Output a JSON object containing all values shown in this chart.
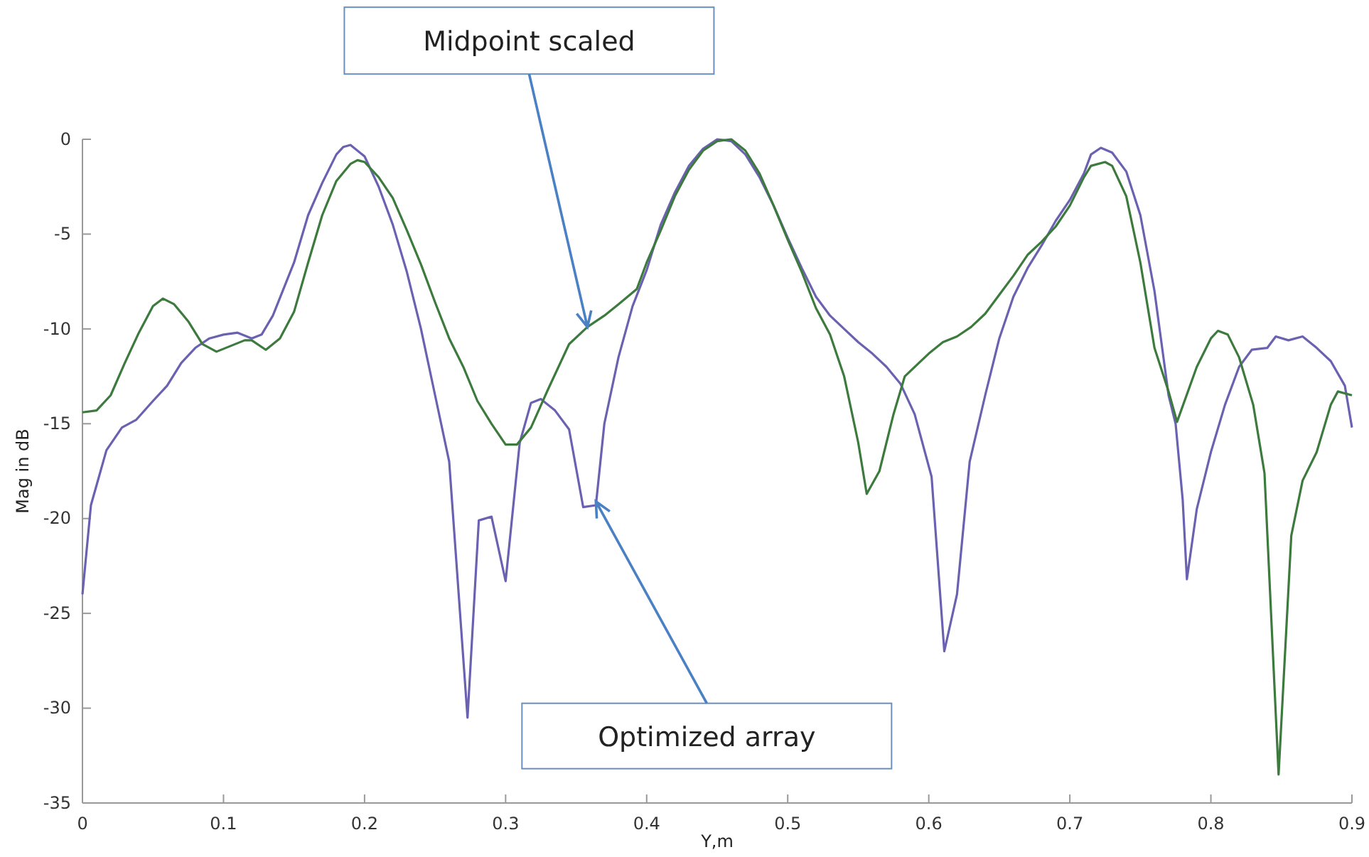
{
  "chart_data": {
    "type": "line",
    "xlabel": "Y,m",
    "ylabel": "Mag in dB",
    "xlim": [
      0,
      0.9
    ],
    "ylim": [
      -35,
      0
    ],
    "xticks": [
      0,
      0.1,
      0.2,
      0.3,
      0.4,
      0.5,
      0.6,
      0.7,
      0.8,
      0.9
    ],
    "yticks": [
      -35,
      -30,
      -25,
      -20,
      -15,
      -10,
      -5,
      0
    ],
    "grid": false,
    "line_style": "solid",
    "marker": "none",
    "series": [
      {
        "color": "#6a62b0",
        "x": [
          0,
          0.006,
          0.017,
          0.028,
          0.038,
          0.05,
          0.06,
          0.07,
          0.08,
          0.09,
          0.1,
          0.11,
          0.12,
          0.127,
          0.135,
          0.15,
          0.16,
          0.17,
          0.18,
          0.185,
          0.19,
          0.2,
          0.21,
          0.22,
          0.23,
          0.24,
          0.25,
          0.26,
          0.273,
          0.281,
          0.29,
          0.3,
          0.31,
          0.318,
          0.325,
          0.335,
          0.345,
          0.355,
          0.364,
          0.37,
          0.38,
          0.39,
          0.4,
          0.41,
          0.42,
          0.43,
          0.44,
          0.45,
          0.46,
          0.47,
          0.48,
          0.49,
          0.5,
          0.51,
          0.52,
          0.53,
          0.54,
          0.55,
          0.56,
          0.57,
          0.58,
          0.59,
          0.602,
          0.611,
          0.62,
          0.629,
          0.64,
          0.65,
          0.66,
          0.67,
          0.68,
          0.69,
          0.7,
          0.71,
          0.715,
          0.722,
          0.73,
          0.74,
          0.75,
          0.76,
          0.77,
          0.775,
          0.78,
          0.783,
          0.79,
          0.8,
          0.81,
          0.82,
          0.829,
          0.84,
          0.846,
          0.855,
          0.865,
          0.875,
          0.885,
          0.895,
          0.9
        ],
        "values": [
          -24,
          -19.3,
          -16.4,
          -15.2,
          -14.8,
          -13.8,
          -13,
          -11.8,
          -11,
          -10.5,
          -10.3,
          -10.2,
          -10.5,
          -10.3,
          -9.3,
          -6.5,
          -4,
          -2.3,
          -0.8,
          -0.4,
          -0.3,
          -0.9,
          -2.5,
          -4.5,
          -7,
          -10,
          -13.5,
          -17,
          -30.5,
          -20.1,
          -19.9,
          -23.3,
          -16,
          -13.9,
          -13.7,
          -14.3,
          -15.3,
          -19.4,
          -19.3,
          -15,
          -11.5,
          -8.8,
          -6.9,
          -4.5,
          -2.8,
          -1.4,
          -0.5,
          0,
          -0.1,
          -0.8,
          -2,
          -3.5,
          -5.2,
          -6.8,
          -8.3,
          -9.3,
          -10,
          -10.7,
          -11.3,
          -12,
          -12.9,
          -14.5,
          -17.8,
          -27,
          -24,
          -17,
          -13.5,
          -10.5,
          -8.3,
          -6.8,
          -5.6,
          -4.3,
          -3.2,
          -1.8,
          -0.8,
          -0.45,
          -0.7,
          -1.7,
          -4,
          -8,
          -13.5,
          -15,
          -19,
          -23.2,
          -19.5,
          -16.5,
          -14,
          -12,
          -11.1,
          -11,
          -10.4,
          -10.6,
          -10.4,
          -11,
          -11.7,
          -13,
          -15.2
        ]
      },
      {
        "color": "#3d7a3d",
        "x": [
          0,
          0.01,
          0.02,
          0.03,
          0.04,
          0.05,
          0.057,
          0.065,
          0.075,
          0.085,
          0.095,
          0.105,
          0.115,
          0.12,
          0.13,
          0.14,
          0.15,
          0.16,
          0.17,
          0.18,
          0.19,
          0.195,
          0.2,
          0.21,
          0.22,
          0.23,
          0.24,
          0.25,
          0.26,
          0.27,
          0.28,
          0.29,
          0.3,
          0.308,
          0.318,
          0.33,
          0.345,
          0.358,
          0.37,
          0.38,
          0.393,
          0.4,
          0.41,
          0.42,
          0.43,
          0.44,
          0.45,
          0.46,
          0.47,
          0.48,
          0.49,
          0.5,
          0.51,
          0.52,
          0.53,
          0.54,
          0.55,
          0.556,
          0.565,
          0.575,
          0.583,
          0.6,
          0.61,
          0.62,
          0.63,
          0.64,
          0.65,
          0.66,
          0.67,
          0.68,
          0.69,
          0.7,
          0.71,
          0.715,
          0.725,
          0.73,
          0.74,
          0.75,
          0.76,
          0.77,
          0.776,
          0.79,
          0.8,
          0.805,
          0.812,
          0.82,
          0.83,
          0.838,
          0.848,
          0.857,
          0.865,
          0.875,
          0.885,
          0.89,
          0.9
        ],
        "values": [
          -14.4,
          -14.3,
          -13.5,
          -11.8,
          -10.2,
          -8.8,
          -8.4,
          -8.7,
          -9.6,
          -10.8,
          -11.2,
          -10.9,
          -10.6,
          -10.6,
          -11.1,
          -10.5,
          -9.1,
          -6.5,
          -4,
          -2.2,
          -1.3,
          -1.1,
          -1.2,
          -2,
          -3.1,
          -4.8,
          -6.6,
          -8.6,
          -10.5,
          -12,
          -13.8,
          -15,
          -16.1,
          -16.1,
          -15.2,
          -13.2,
          -10.8,
          -9.9,
          -9.3,
          -8.7,
          -7.9,
          -6.5,
          -4.8,
          -3,
          -1.6,
          -0.6,
          -0.1,
          0,
          -0.6,
          -1.8,
          -3.5,
          -5.3,
          -7,
          -8.9,
          -10.3,
          -12.5,
          -16,
          -18.7,
          -17.5,
          -14.5,
          -12.5,
          -11.3,
          -10.7,
          -10.4,
          -9.9,
          -9.2,
          -8.2,
          -7.2,
          -6.1,
          -5.4,
          -4.6,
          -3.5,
          -2,
          -1.4,
          -1.2,
          -1.4,
          -3,
          -6.5,
          -11,
          -13.3,
          -14.9,
          -12,
          -10.5,
          -10.1,
          -10.3,
          -11.5,
          -14,
          -17.6,
          -33.5,
          -20.9,
          -18,
          -16.5,
          -14,
          -13.3,
          -13.5
        ]
      }
    ],
    "annotations": [
      {
        "text": "Midpoint scaled",
        "x": 0.358,
        "y": -9.9
      },
      {
        "text": "Optimized array",
        "x": 0.364,
        "y": -19.1
      }
    ]
  }
}
